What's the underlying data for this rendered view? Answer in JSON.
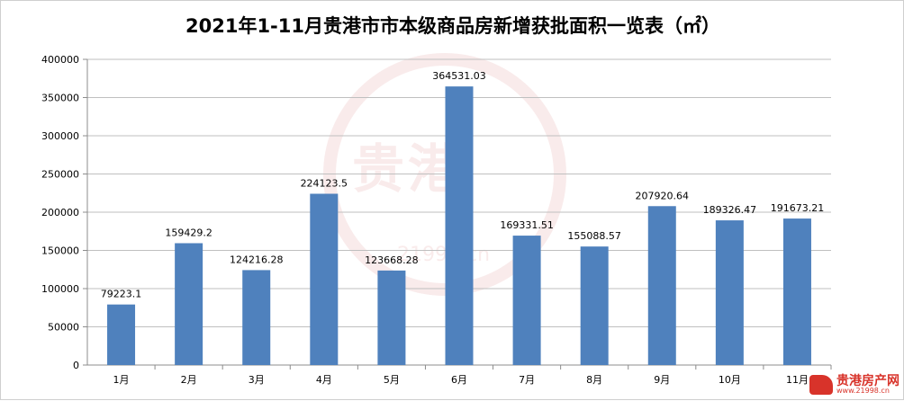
{
  "chart_data": {
    "type": "bar",
    "title": "2021年1-11月贵港市市本级商品房新增获批面积一览表（㎡）",
    "xlabel": "",
    "ylabel": "",
    "categories": [
      "1月",
      "2月",
      "3月",
      "4月",
      "5月",
      "6月",
      "7月",
      "8月",
      "9月",
      "10月",
      "11月"
    ],
    "values": [
      79223.1,
      159429.2,
      124216.28,
      224123.5,
      123668.28,
      364531.03,
      169331.51,
      155088.57,
      207920.64,
      189326.47,
      191673.21
    ],
    "value_labels": [
      "79223.1",
      "159429.2",
      "124216.28",
      "224123.5",
      "123668.28",
      "364531.03",
      "169331.51",
      "155088.57",
      "207920.64",
      "189326.47",
      "191673.21"
    ],
    "ylim": [
      0,
      400000
    ],
    "yticks": [
      0,
      50000,
      100000,
      150000,
      200000,
      250000,
      300000,
      350000,
      400000
    ],
    "grid": true,
    "legend": "none",
    "bar_color": "#4f81bd"
  },
  "watermark": {
    "text": "贵港房产网",
    "url": "www.21998.cn"
  },
  "logo": {
    "name": "贵港房产网",
    "url": "www.21998.cn",
    "icon": "house-logo-icon"
  }
}
